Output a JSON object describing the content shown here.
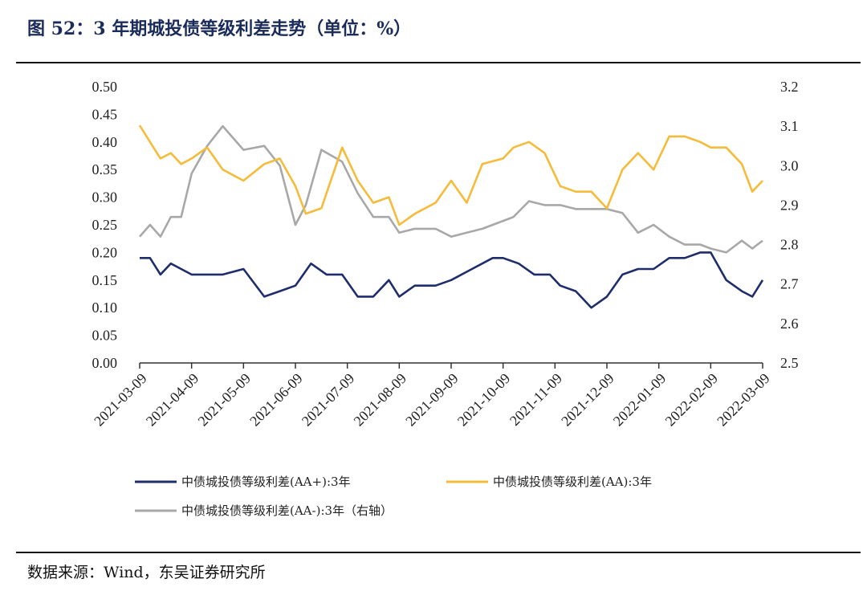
{
  "title": "图 52：3 年期城投债等级利差走势（单位：%）",
  "source": "数据来源：Wind，东吴证券研究所",
  "colors": {
    "aa_plus": "#1f2d6b",
    "aa": "#f5bb3a",
    "aa_minus": "#a8a8a8",
    "axis": "#333333"
  },
  "chart_data": {
    "type": "line",
    "x_labels": [
      "2021-03-09",
      "2021-04-09",
      "2021-05-09",
      "2021-06-09",
      "2021-07-09",
      "2021-08-09",
      "2021-09-09",
      "2021-10-09",
      "2021-11-09",
      "2021-12-09",
      "2022-01-09",
      "2022-02-09",
      "2022-03-09"
    ],
    "left_axis": {
      "ylim": [
        0,
        0.5
      ],
      "ticks": [
        "0.00",
        "0.05",
        "0.10",
        "0.15",
        "0.20",
        "0.25",
        "0.30",
        "0.35",
        "0.40",
        "0.45",
        "0.50"
      ]
    },
    "right_axis": {
      "ylim": [
        2.5,
        3.2
      ],
      "ticks": [
        "2.5",
        "2.6",
        "2.7",
        "2.8",
        "2.9",
        "3.0",
        "3.1",
        "3.2"
      ]
    },
    "series": [
      {
        "name": "中债城投债等级利差(AA+):3年",
        "axis": "left",
        "x": [
          0,
          0.2,
          0.4,
          0.6,
          0.8,
          1.0,
          1.3,
          1.6,
          2.0,
          2.4,
          2.7,
          3.0,
          3.3,
          3.6,
          3.9,
          4.2,
          4.5,
          4.8,
          5.0,
          5.3,
          5.7,
          6.0,
          6.4,
          6.8,
          7.0,
          7.3,
          7.6,
          7.9,
          8.1,
          8.4,
          8.7,
          9.0,
          9.3,
          9.6,
          9.9,
          10.2,
          10.5,
          10.8,
          11.0,
          11.3,
          11.6,
          11.8,
          12.0
        ],
        "values": [
          0.19,
          0.19,
          0.16,
          0.18,
          0.17,
          0.16,
          0.16,
          0.16,
          0.17,
          0.12,
          0.13,
          0.14,
          0.18,
          0.16,
          0.16,
          0.12,
          0.12,
          0.15,
          0.12,
          0.14,
          0.14,
          0.15,
          0.17,
          0.19,
          0.19,
          0.18,
          0.16,
          0.16,
          0.14,
          0.13,
          0.1,
          0.12,
          0.16,
          0.17,
          0.17,
          0.19,
          0.19,
          0.2,
          0.2,
          0.15,
          0.13,
          0.12,
          0.15
        ]
      },
      {
        "name": "中债城投债等级利差(AA):3年",
        "axis": "left",
        "x": [
          0,
          0.2,
          0.4,
          0.6,
          0.8,
          1.0,
          1.3,
          1.6,
          2.0,
          2.4,
          2.7,
          3.0,
          3.2,
          3.5,
          3.9,
          4.2,
          4.5,
          4.8,
          5.0,
          5.3,
          5.7,
          6.0,
          6.3,
          6.6,
          7.0,
          7.2,
          7.5,
          7.8,
          8.1,
          8.4,
          8.7,
          9.0,
          9.3,
          9.6,
          9.9,
          10.2,
          10.5,
          10.8,
          11.0,
          11.3,
          11.6,
          11.8,
          12.0
        ],
        "values": [
          0.43,
          0.4,
          0.37,
          0.38,
          0.36,
          0.37,
          0.39,
          0.35,
          0.33,
          0.36,
          0.37,
          0.32,
          0.27,
          0.28,
          0.39,
          0.33,
          0.29,
          0.3,
          0.25,
          0.27,
          0.29,
          0.33,
          0.29,
          0.36,
          0.37,
          0.39,
          0.4,
          0.38,
          0.32,
          0.31,
          0.31,
          0.28,
          0.35,
          0.38,
          0.35,
          0.41,
          0.41,
          0.4,
          0.39,
          0.39,
          0.36,
          0.31,
          0.33
        ]
      },
      {
        "name": "中债城投债等级利差(AA-):3年（右轴）",
        "axis": "right",
        "x": [
          0,
          0.2,
          0.4,
          0.6,
          0.8,
          1.0,
          1.3,
          1.6,
          2.0,
          2.4,
          2.7,
          3.0,
          3.2,
          3.5,
          3.9,
          4.2,
          4.5,
          4.8,
          5.0,
          5.3,
          5.7,
          6.0,
          6.3,
          6.6,
          7.0,
          7.2,
          7.5,
          7.8,
          8.1,
          8.4,
          8.7,
          9.0,
          9.3,
          9.6,
          9.9,
          10.2,
          10.5,
          10.8,
          11.0,
          11.3,
          11.6,
          11.8,
          12.0
        ],
        "values": [
          2.82,
          2.85,
          2.82,
          2.87,
          2.87,
          2.98,
          3.05,
          3.1,
          3.04,
          3.05,
          3.0,
          2.85,
          2.9,
          3.04,
          3.01,
          2.93,
          2.87,
          2.87,
          2.83,
          2.84,
          2.84,
          2.82,
          2.83,
          2.84,
          2.86,
          2.87,
          2.91,
          2.9,
          2.9,
          2.89,
          2.89,
          2.89,
          2.88,
          2.83,
          2.85,
          2.82,
          2.8,
          2.8,
          2.79,
          2.78,
          2.81,
          2.79,
          2.81
        ]
      }
    ]
  }
}
